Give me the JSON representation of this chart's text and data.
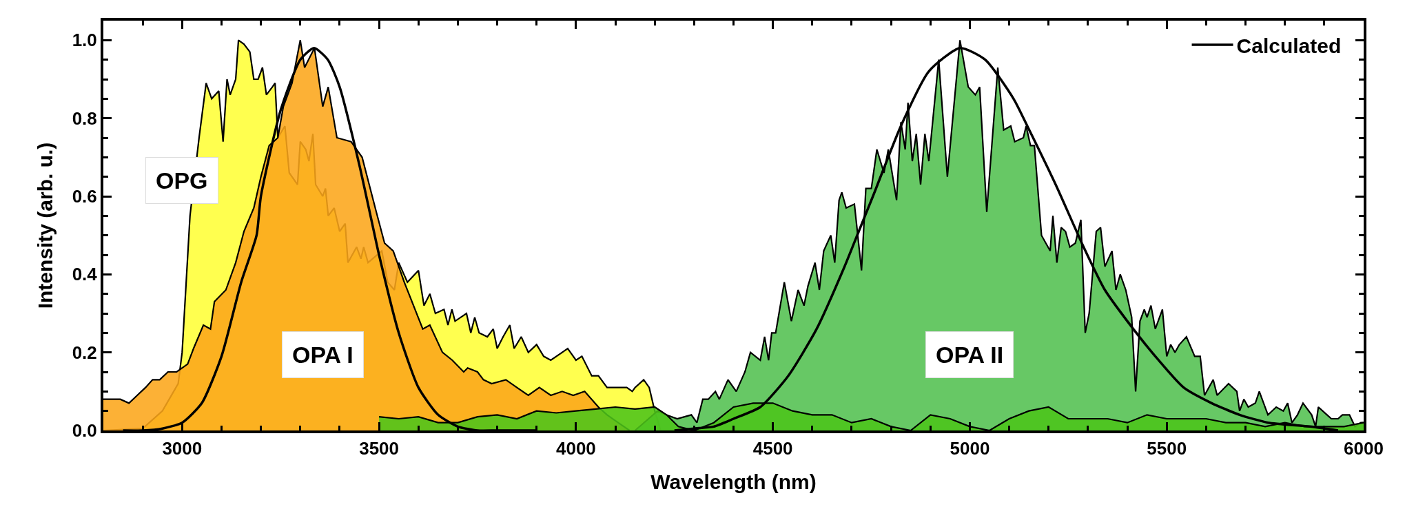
{
  "chart_data": {
    "type": "area",
    "xlabel": "Wavelength (nm)",
    "ylabel": "Intensity (arb. u.)",
    "xlim": [
      2800,
      6000
    ],
    "ylim": [
      0,
      1.05
    ],
    "xticks": [
      {
        "value": 2900,
        "label": null
      },
      3000,
      {
        "value": 3100,
        "label": null
      },
      {
        "value": 3200,
        "label": null
      },
      {
        "value": 3300,
        "label": null
      },
      {
        "value": 3400,
        "label": null
      },
      3500,
      {
        "value": 3600,
        "label": null
      },
      {
        "value": 3700,
        "label": null
      },
      {
        "value": 3800,
        "label": null
      },
      {
        "value": 3900,
        "label": null
      },
      4000,
      {
        "value": 4100,
        "label": null
      },
      {
        "value": 4200,
        "label": null
      },
      {
        "value": 4300,
        "label": null
      },
      {
        "value": 4400,
        "label": null
      },
      4500,
      {
        "value": 4600,
        "label": null
      },
      {
        "value": 4700,
        "label": null
      },
      {
        "value": 4800,
        "label": null
      },
      {
        "value": 4900,
        "label": null
      },
      5000,
      {
        "value": 5100,
        "label": null
      },
      {
        "value": 5200,
        "label": null
      },
      {
        "value": 5300,
        "label": null
      },
      {
        "value": 5400,
        "label": null
      },
      5500,
      {
        "value": 5600,
        "label": null
      },
      {
        "value": 5700,
        "label": null
      },
      {
        "value": 5800,
        "label": null
      },
      {
        "value": 5900,
        "label": null
      },
      6000
    ],
    "yticks": [
      {
        "value": 0,
        "label": "0.0"
      },
      {
        "value": 0.05,
        "label": null
      },
      {
        "value": 0.1,
        "label": null
      },
      {
        "value": 0.15,
        "label": null
      },
      {
        "value": 0.2,
        "label": "0.2"
      },
      {
        "value": 0.25,
        "label": null
      },
      {
        "value": 0.3,
        "label": null
      },
      {
        "value": 0.35,
        "label": null
      },
      {
        "value": 0.4,
        "label": "0.4"
      },
      {
        "value": 0.45,
        "label": null
      },
      {
        "value": 0.5,
        "label": null
      },
      {
        "value": 0.55,
        "label": null
      },
      {
        "value": 0.6,
        "label": "0.6"
      },
      {
        "value": 0.65,
        "label": null
      },
      {
        "value": 0.7,
        "label": null
      },
      {
        "value": 0.75,
        "label": null
      },
      {
        "value": 0.8,
        "label": "0.8"
      },
      {
        "value": 0.85,
        "label": null
      },
      {
        "value": 0.9,
        "label": null
      },
      {
        "value": 0.95,
        "label": null
      },
      {
        "value": 1.0,
        "label": "1.0"
      },
      {
        "value": 1.05,
        "label": null
      }
    ],
    "grid": false,
    "legend": "top right",
    "annotations": [
      "OPG",
      "OPA I",
      "OPA II"
    ],
    "series": [
      {
        "color": "#ffff4f",
        "x": [
          2800,
          2900,
          2950,
          2990,
          3000,
          3020,
          3043,
          3061,
          3075,
          3093,
          3104,
          3114,
          3122,
          3136,
          3143,
          3157,
          3172,
          3182,
          3193,
          3204,
          3214,
          3229,
          3236,
          3243,
          3261,
          3272,
          3293,
          3300,
          3314,
          3322,
          3332,
          3339,
          3357,
          3364,
          3371,
          3386,
          3400,
          3414,
          3421,
          3443,
          3454,
          3461,
          3472,
          3507,
          3522,
          3539,
          3550,
          3572,
          3600,
          3614,
          3629,
          3643,
          3665,
          3675,
          3685,
          3693,
          3722,
          3733,
          3743,
          3754,
          3775,
          3790,
          3800,
          3815,
          3832,
          3843,
          3861,
          3879,
          3900,
          3918,
          3936,
          3965,
          3979,
          4000,
          4015,
          4040,
          4057,
          4079,
          4107,
          4129,
          4143,
          4150,
          4172,
          4186,
          4200,
          4215,
          4300
        ],
        "values": [
          0.0,
          0.005,
          0.05,
          0.12,
          0.2,
          0.55,
          0.75,
          0.89,
          0.85,
          0.87,
          0.74,
          0.9,
          0.86,
          0.9,
          1.0,
          0.99,
          0.97,
          0.9,
          0.9,
          0.93,
          0.86,
          0.88,
          0.89,
          0.75,
          0.78,
          0.66,
          0.63,
          0.74,
          0.72,
          0.69,
          0.76,
          0.63,
          0.6,
          0.62,
          0.55,
          0.57,
          0.51,
          0.53,
          0.43,
          0.47,
          0.44,
          0.47,
          0.43,
          0.46,
          0.38,
          0.36,
          0.43,
          0.38,
          0.41,
          0.32,
          0.35,
          0.3,
          0.31,
          0.27,
          0.31,
          0.28,
          0.3,
          0.25,
          0.29,
          0.25,
          0.24,
          0.26,
          0.21,
          0.24,
          0.27,
          0.21,
          0.24,
          0.2,
          0.22,
          0.19,
          0.18,
          0.2,
          0.21,
          0.18,
          0.19,
          0.14,
          0.14,
          0.11,
          0.11,
          0.11,
          0.1,
          0.11,
          0.13,
          0.11,
          0.05,
          0.0,
          0.0
        ]
      },
      {
        "color": "#fca61a",
        "x": [
          2800,
          2822,
          2843,
          2865,
          2886,
          2907,
          2925,
          2943,
          2964,
          2986,
          3014,
          3029,
          3054,
          3072,
          3082,
          3111,
          3136,
          3157,
          3182,
          3200,
          3221,
          3243,
          3257,
          3279,
          3300,
          3311,
          3336,
          3357,
          3371,
          3393,
          3429,
          3457,
          3493,
          3514,
          3536,
          3564,
          3611,
          3629,
          3661,
          3686,
          3715,
          3725,
          3750,
          3765,
          3786,
          3822,
          3850,
          3879,
          3907,
          3936,
          3965,
          3993,
          4022,
          4057,
          4079,
          4107,
          4136
        ],
        "values": [
          0.08,
          0.08,
          0.08,
          0.07,
          0.09,
          0.11,
          0.13,
          0.13,
          0.15,
          0.15,
          0.17,
          0.21,
          0.27,
          0.26,
          0.33,
          0.36,
          0.43,
          0.51,
          0.57,
          0.65,
          0.73,
          0.75,
          0.83,
          0.89,
          1.0,
          0.93,
          0.98,
          0.83,
          0.88,
          0.75,
          0.74,
          0.7,
          0.56,
          0.48,
          0.46,
          0.38,
          0.26,
          0.27,
          0.2,
          0.18,
          0.15,
          0.16,
          0.15,
          0.13,
          0.12,
          0.13,
          0.11,
          0.09,
          0.11,
          0.09,
          0.1,
          0.09,
          0.1,
          0.06,
          0.04,
          0.02,
          0.0
        ]
      },
      {
        "color": "#52c050",
        "x": [
          4150,
          4207,
          4229,
          4257,
          4293,
          4307,
          4322,
          4336,
          4354,
          4364,
          4386,
          4407,
          4429,
          4443,
          4468,
          4479,
          4489,
          4497,
          4507,
          4529,
          4547,
          4564,
          4579,
          4589,
          4607,
          4618,
          4629,
          4647,
          4657,
          4668,
          4675,
          4686,
          4707,
          4725,
          4736,
          4750,
          4764,
          4782,
          4793,
          4814,
          4825,
          4836,
          4843,
          4854,
          4864,
          4875,
          4886,
          4896,
          4921,
          4943,
          4975,
          4996,
          5014,
          5025,
          5043,
          5071,
          5086,
          5104,
          5114,
          5136,
          5143,
          5154,
          5164,
          5182,
          5204,
          5211,
          5221,
          5232,
          5243,
          5254,
          5268,
          5282,
          5293,
          5303,
          5321,
          5332,
          5343,
          5361,
          5371,
          5382,
          5396,
          5411,
          5421,
          5432,
          5443,
          5450,
          5460,
          5471,
          5489,
          5500,
          5510,
          5521,
          5532,
          5550,
          5571,
          5585,
          5596,
          5618,
          5628,
          5657,
          5678,
          5685,
          5696,
          5707,
          5725,
          5735,
          5757,
          5778,
          5796,
          5807,
          5818,
          5832,
          5846,
          5868,
          5878,
          5885,
          5907,
          5918,
          5935,
          5946,
          5964,
          5978,
          5993,
          6000
        ],
        "values": [
          0.0,
          0.05,
          0.04,
          0.03,
          0.04,
          0.02,
          0.08,
          0.08,
          0.1,
          0.08,
          0.13,
          0.1,
          0.15,
          0.2,
          0.18,
          0.24,
          0.18,
          0.25,
          0.25,
          0.38,
          0.28,
          0.36,
          0.32,
          0.37,
          0.43,
          0.36,
          0.46,
          0.5,
          0.43,
          0.59,
          0.61,
          0.57,
          0.58,
          0.41,
          0.62,
          0.62,
          0.72,
          0.66,
          0.72,
          0.59,
          0.79,
          0.72,
          0.84,
          0.69,
          0.76,
          0.63,
          0.76,
          0.69,
          0.95,
          0.65,
          1.0,
          0.88,
          0.86,
          0.88,
          0.56,
          0.93,
          0.77,
          0.78,
          0.74,
          0.75,
          0.78,
          0.73,
          0.73,
          0.5,
          0.46,
          0.55,
          0.43,
          0.52,
          0.51,
          0.47,
          0.48,
          0.54,
          0.25,
          0.3,
          0.51,
          0.52,
          0.42,
          0.46,
          0.36,
          0.4,
          0.36,
          0.29,
          0.1,
          0.28,
          0.31,
          0.29,
          0.32,
          0.26,
          0.31,
          0.19,
          0.22,
          0.2,
          0.22,
          0.24,
          0.19,
          0.19,
          0.09,
          0.13,
          0.09,
          0.12,
          0.1,
          0.05,
          0.08,
          0.06,
          0.07,
          0.1,
          0.04,
          0.06,
          0.05,
          0.07,
          0.02,
          0.04,
          0.07,
          0.04,
          0.01,
          0.06,
          0.04,
          0.03,
          0.03,
          0.04,
          0.04,
          0.01,
          0.02,
          0.02
        ]
      },
      {
        "color": "#4cc41a",
        "x": [
          3500,
          3550,
          3600,
          3650,
          3700,
          3750,
          3800,
          3850,
          3900,
          3950,
          4000,
          4050,
          4100,
          4150,
          4200,
          4230,
          4260,
          4300,
          4350,
          4400,
          4450,
          4500,
          4550,
          4600,
          4650,
          4700,
          4750,
          4800,
          4850,
          4900,
          4950,
          5000,
          5050,
          5100,
          5150,
          5200,
          5250,
          5300,
          5350,
          5400,
          5450,
          5500,
          5550,
          5600,
          5650,
          5700,
          5750,
          5800,
          5850,
          5900,
          5950,
          6000
        ],
        "values": [
          0.035,
          0.03,
          0.035,
          0.02,
          0.02,
          0.035,
          0.04,
          0.03,
          0.05,
          0.045,
          0.05,
          0.055,
          0.06,
          0.055,
          0.06,
          0.04,
          0.01,
          0.0,
          0.02,
          0.06,
          0.07,
          0.07,
          0.05,
          0.04,
          0.04,
          0.02,
          0.03,
          0.01,
          0.0,
          0.04,
          0.03,
          0.01,
          0.0,
          0.03,
          0.05,
          0.06,
          0.03,
          0.03,
          0.03,
          0.02,
          0.04,
          0.03,
          0.03,
          0.03,
          0.02,
          0.02,
          0.01,
          0.02,
          0.01,
          0.01,
          0.01,
          0.02
        ]
      },
      {
        "type": "line",
        "name": "Calculated",
        "color": "#000000",
        "x": [
          2850,
          2900,
          2950,
          3000,
          3050,
          3100,
          3150,
          3189,
          3200,
          3250,
          3300,
          3335,
          3370,
          3400,
          3450,
          3489,
          3500,
          3550,
          3600,
          3650,
          3700,
          3750,
          3800,
          3900
        ],
        "values": [
          0.0,
          0.0,
          0.005,
          0.02,
          0.07,
          0.19,
          0.38,
          0.5,
          0.6,
          0.82,
          0.95,
          0.98,
          0.95,
          0.88,
          0.68,
          0.5,
          0.45,
          0.25,
          0.11,
          0.04,
          0.01,
          0.0,
          0.0,
          0.0
        ]
      },
      {
        "type": "line",
        "color": "#000000",
        "x": [
          4250,
          4300,
          4350,
          4400,
          4468,
          4539,
          4611,
          4682,
          4718,
          4754,
          4825,
          4896,
          4975,
          5039,
          5111,
          5146,
          5218,
          5289,
          5343,
          5400,
          5471,
          5543,
          5614,
          5685,
          5757,
          5864,
          5935
        ],
        "values": [
          0.0,
          0.005,
          0.01,
          0.03,
          0.06,
          0.14,
          0.26,
          0.42,
          0.51,
          0.6,
          0.78,
          0.92,
          0.98,
          0.95,
          0.85,
          0.78,
          0.63,
          0.47,
          0.36,
          0.28,
          0.19,
          0.11,
          0.07,
          0.04,
          0.02,
          0.01,
          0.0
        ]
      }
    ]
  }
}
